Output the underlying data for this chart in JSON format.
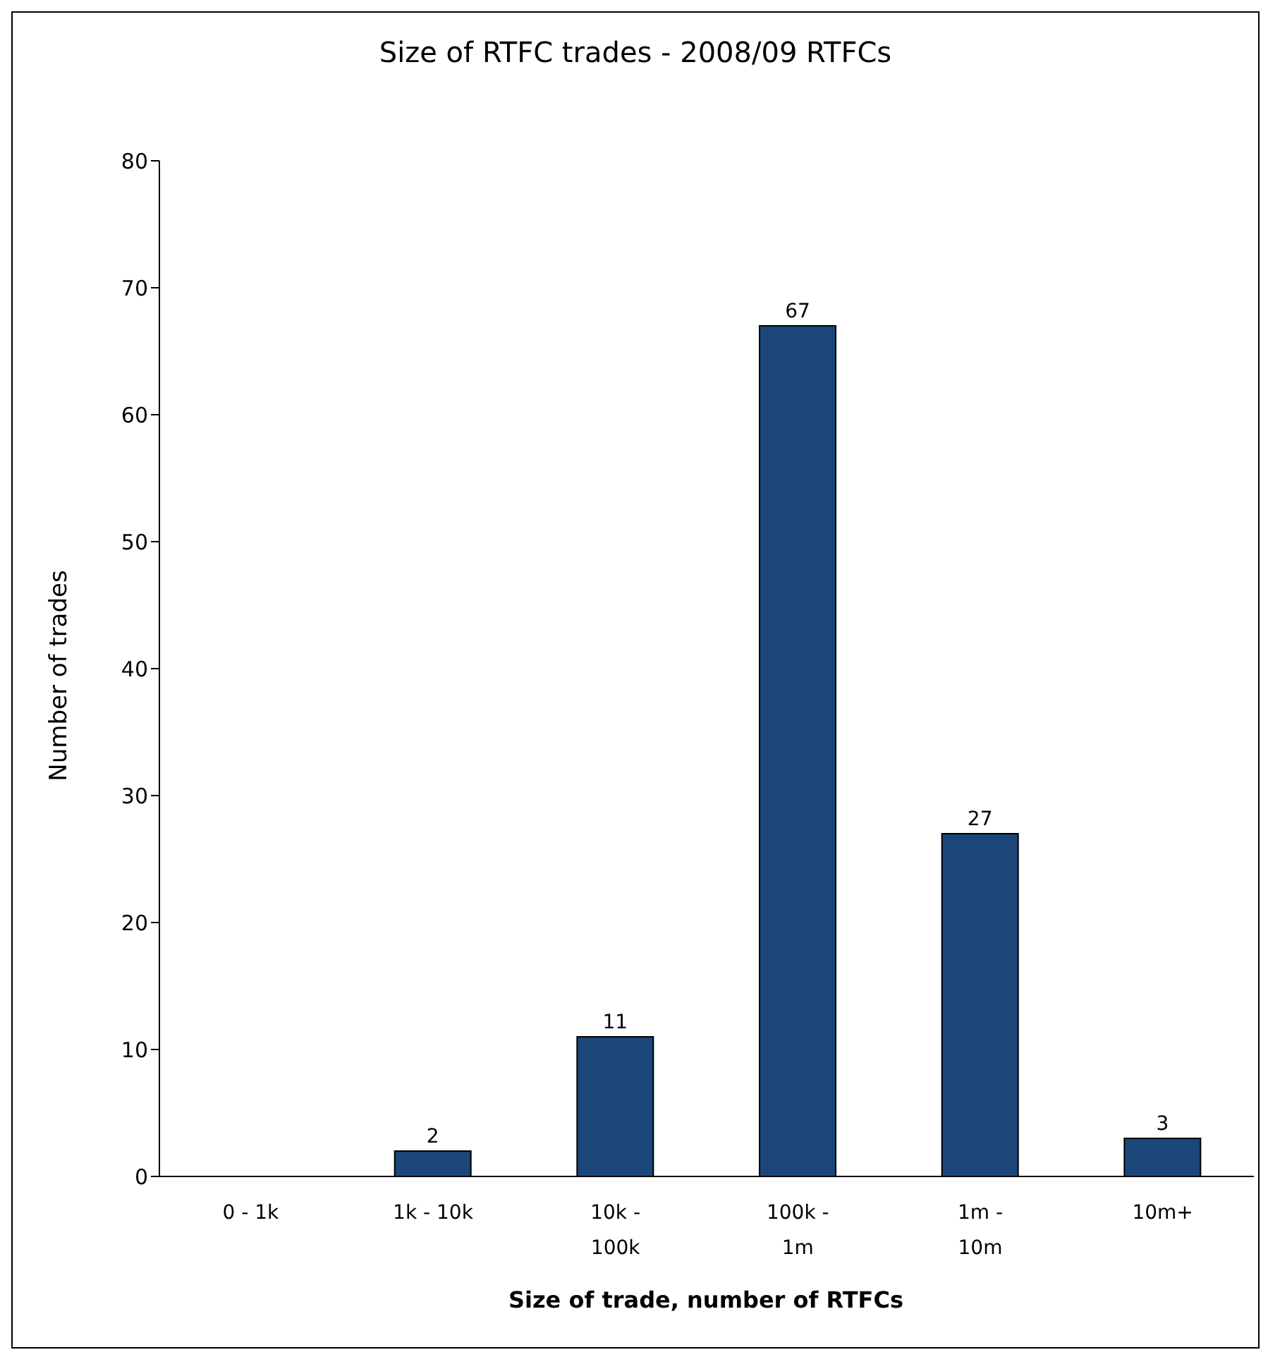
{
  "chart_data": {
    "type": "bar",
    "title": "Size of RTFC trades - 2008/09 RTFCs",
    "xlabel": "Size of trade, number of RTFCs",
    "ylabel": "Number of trades",
    "categories": [
      "0 - 1k",
      "1k - 10k",
      "10k - 100k",
      "100k - 1m",
      "1m - 10m",
      "10m+"
    ],
    "values": [
      0,
      2,
      11,
      67,
      27,
      3
    ],
    "value_labels": [
      null,
      "2",
      "11",
      "67",
      "27",
      "3"
    ],
    "color": "#1b4679",
    "ylim": [
      0,
      80
    ],
    "yticks": [
      0,
      10,
      20,
      30,
      40,
      50,
      60,
      70,
      80
    ],
    "grid": false,
    "legend": false
  }
}
